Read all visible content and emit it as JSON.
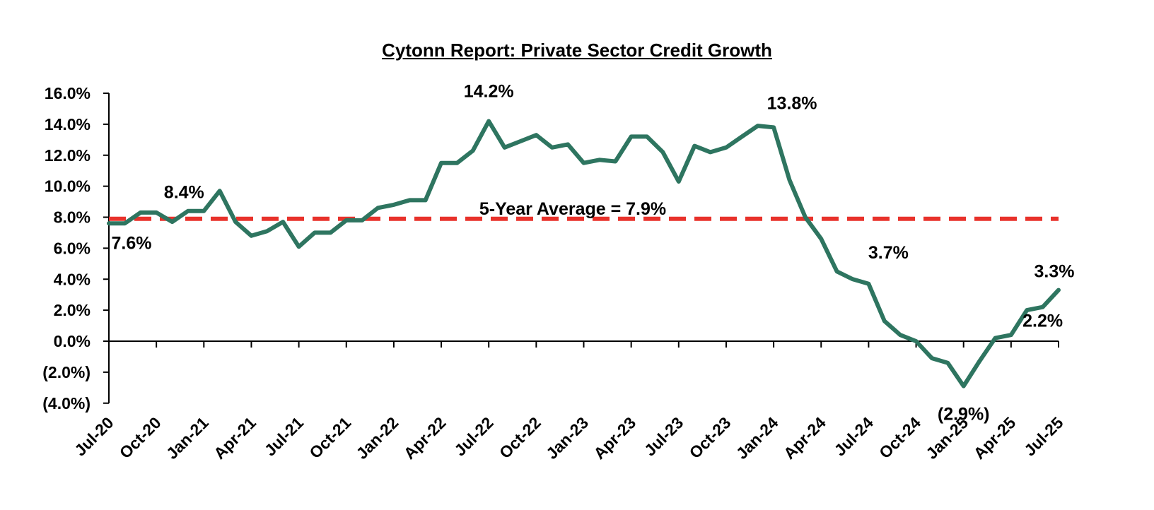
{
  "chart_data": {
    "type": "line",
    "title": "Cytonn Report: Private Sector Credit Growth",
    "xlabel": "",
    "ylabel": "",
    "ylim": [
      -4.0,
      16.0
    ],
    "y_ticks": [
      16.0,
      14.0,
      12.0,
      10.0,
      8.0,
      6.0,
      4.0,
      2.0,
      0.0,
      -2.0,
      -4.0
    ],
    "y_tick_labels": [
      "16.0%",
      "14.0%",
      "12.0%",
      "10.0%",
      "8.0%",
      "6.0%",
      "4.0%",
      "2.0%",
      "0.0%",
      "(2.0%)",
      "(4.0%)"
    ],
    "x_tick_labels": [
      "Jul-20",
      "Oct-20",
      "Jan-21",
      "Apr-21",
      "Jul-21",
      "Oct-21",
      "Jan-22",
      "Apr-22",
      "Jul-22",
      "Oct-22",
      "Jan-23",
      "Apr-23",
      "Jul-23",
      "Oct-23",
      "Jan-24",
      "Apr-24",
      "Jul-24",
      "Oct-24",
      "Jan-25",
      "Apr-25",
      "Jul-25"
    ],
    "categories": [
      "Jul-20",
      "Aug-20",
      "Sep-20",
      "Oct-20",
      "Nov-20",
      "Dec-20",
      "Jan-21",
      "Feb-21",
      "Mar-21",
      "Apr-21",
      "May-21",
      "Jun-21",
      "Jul-21",
      "Aug-21",
      "Sep-21",
      "Oct-21",
      "Nov-21",
      "Dec-21",
      "Jan-22",
      "Feb-22",
      "Mar-22",
      "Apr-22",
      "May-22",
      "Jun-22",
      "Jul-22",
      "Aug-22",
      "Sep-22",
      "Oct-22",
      "Nov-22",
      "Dec-22",
      "Jan-23",
      "Feb-23",
      "Mar-23",
      "Apr-23",
      "May-23",
      "Jun-23",
      "Jul-23",
      "Aug-23",
      "Sep-23",
      "Oct-23",
      "Nov-23",
      "Dec-23",
      "Jan-24",
      "Feb-24",
      "Mar-24",
      "Apr-24",
      "May-24",
      "Jun-24",
      "Jul-24",
      "Aug-24",
      "Sep-24",
      "Oct-24",
      "Nov-24",
      "Dec-24",
      "Jan-25",
      "Feb-25",
      "Mar-25",
      "Apr-25",
      "May-25",
      "Jun-25",
      "Jul-25"
    ],
    "series": [
      {
        "color": "#2E7560",
        "values": [
          7.6,
          7.6,
          8.3,
          8.3,
          7.7,
          8.4,
          8.4,
          9.7,
          7.7,
          6.8,
          7.1,
          7.7,
          6.1,
          7.0,
          7.0,
          7.8,
          7.8,
          8.6,
          8.8,
          9.1,
          9.1,
          11.5,
          11.5,
          12.3,
          14.2,
          12.5,
          12.9,
          13.3,
          12.5,
          12.7,
          11.5,
          11.7,
          11.6,
          13.2,
          13.2,
          12.2,
          10.3,
          12.6,
          12.2,
          12.5,
          13.2,
          13.9,
          13.8,
          10.4,
          8.0,
          6.6,
          4.5,
          4.0,
          3.7,
          1.3,
          0.4,
          0.0,
          -1.1,
          -1.4,
          -2.9,
          -1.3,
          0.2,
          0.4,
          2.0,
          2.2,
          3.3
        ]
      }
    ],
    "average_line": {
      "label": "5-Year Average = 7.9%",
      "value": 7.9,
      "color": "#E8322B"
    },
    "annotations": [
      {
        "text": "7.6%",
        "index": 0
      },
      {
        "text": "8.4%",
        "index": 6
      },
      {
        "text": "14.2%",
        "index": 24
      },
      {
        "text": "13.8%",
        "index": 42
      },
      {
        "text": "3.7%",
        "index": 48
      },
      {
        "text": "(2.9%)",
        "index": 54
      },
      {
        "text": "2.2%",
        "index": 59
      },
      {
        "text": "3.3%",
        "index": 60
      }
    ],
    "grid": false,
    "legend": "none"
  }
}
